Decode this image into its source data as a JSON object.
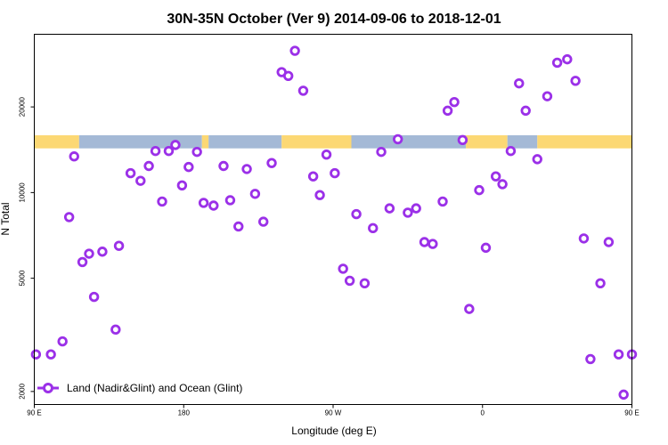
{
  "chart_data": {
    "type": "scatter",
    "title": "30N-35N October (Ver 9)   2014-09-06 to 2018-12-01",
    "xlabel": "Longitude (deg E)",
    "ylabel": "N Total",
    "xlim": [
      90,
      450
    ],
    "ylim": [
      1800,
      36000
    ],
    "y_scale": "log",
    "x_ticks": [
      {
        "value": 90,
        "label": "90 E"
      },
      {
        "value": 180,
        "label": "180"
      },
      {
        "value": 270,
        "label": "90 W"
      },
      {
        "value": 360,
        "label": "0"
      },
      {
        "value": 450,
        "label": "90 E"
      },
      {
        "value": 540,
        "label": "180"
      }
    ],
    "y_ticks": [
      {
        "value": 2000,
        "label": "2000"
      },
      {
        "value": 5000,
        "label": "5000"
      },
      {
        "value": 10000,
        "label": "10000"
      },
      {
        "value": 20000,
        "label": "20000"
      }
    ],
    "grid": false,
    "legend_position": "bottom-left",
    "colors": {
      "series": "#9b30e8",
      "land": "#fcd874",
      "ocean": "#a4b9d6"
    },
    "surface_band": {
      "level_low": 14300,
      "level_high": 15900,
      "segments": [
        {
          "x0": 90,
          "x1": 117,
          "surface": "land"
        },
        {
          "x0": 117,
          "x1": 191,
          "surface": "ocean"
        },
        {
          "x0": 191,
          "x1": 195,
          "surface": "land"
        },
        {
          "x0": 195,
          "x1": 239,
          "surface": "ocean"
        },
        {
          "x0": 239,
          "x1": 281,
          "surface": "land"
        },
        {
          "x0": 281,
          "x1": 350,
          "surface": "ocean"
        },
        {
          "x0": 350,
          "x1": 375,
          "surface": "land"
        },
        {
          "x0": 375,
          "x1": 393,
          "surface": "ocean"
        },
        {
          "x0": 393,
          "x1": 474,
          "surface": "land"
        },
        {
          "x0": 474,
          "x1": 545,
          "surface": "ocean"
        }
      ]
    },
    "series": [
      {
        "name": "Land (Nadir&Glint) and Ocean (Glint)",
        "points": [
          [
            91,
            2700
          ],
          [
            100,
            2700
          ],
          [
            107,
            3000
          ],
          [
            111,
            8200
          ],
          [
            114,
            13400
          ],
          [
            119,
            5700
          ],
          [
            123,
            6100
          ],
          [
            126,
            4300
          ],
          [
            131,
            6200
          ],
          [
            139,
            3300
          ],
          [
            141,
            6500
          ],
          [
            148,
            11700
          ],
          [
            154,
            11000
          ],
          [
            159,
            12400
          ],
          [
            163,
            14000
          ],
          [
            167,
            9300
          ],
          [
            171,
            14000
          ],
          [
            175,
            14700
          ],
          [
            179,
            10600
          ],
          [
            183,
            12300
          ],
          [
            188,
            13900
          ],
          [
            192,
            9200
          ],
          [
            198,
            9000
          ],
          [
            204,
            12400
          ],
          [
            208,
            9400
          ],
          [
            213,
            7600
          ],
          [
            218,
            12100
          ],
          [
            223,
            9900
          ],
          [
            228,
            7900
          ],
          [
            233,
            12700
          ],
          [
            239,
            26500
          ],
          [
            243,
            25700
          ],
          [
            247,
            31500
          ],
          [
            252,
            22800
          ],
          [
            258,
            11400
          ],
          [
            262,
            9800
          ],
          [
            266,
            13600
          ],
          [
            271,
            11700
          ],
          [
            276,
            5400
          ],
          [
            280,
            4900
          ],
          [
            284,
            8400
          ],
          [
            289,
            4800
          ],
          [
            294,
            7500
          ],
          [
            299,
            13900
          ],
          [
            304,
            8800
          ],
          [
            309,
            15400
          ],
          [
            315,
            8500
          ],
          [
            320,
            8800
          ],
          [
            325,
            6700
          ],
          [
            330,
            6600
          ],
          [
            336,
            9300
          ],
          [
            339,
            19400
          ],
          [
            343,
            20800
          ],
          [
            348,
            15300
          ],
          [
            352,
            3900
          ],
          [
            358,
            10200
          ],
          [
            362,
            6400
          ],
          [
            368,
            11400
          ],
          [
            372,
            10700
          ],
          [
            377,
            14000
          ],
          [
            382,
            24200
          ],
          [
            386,
            19400
          ],
          [
            393,
            13100
          ],
          [
            399,
            21800
          ],
          [
            405,
            28600
          ],
          [
            411,
            29400
          ],
          [
            416,
            24700
          ],
          [
            421,
            6900
          ],
          [
            425,
            2600
          ],
          [
            431,
            4800
          ],
          [
            436,
            6700
          ],
          [
            442,
            2700
          ],
          [
            445,
            1950
          ],
          [
            450,
            2700
          ]
        ]
      }
    ]
  }
}
